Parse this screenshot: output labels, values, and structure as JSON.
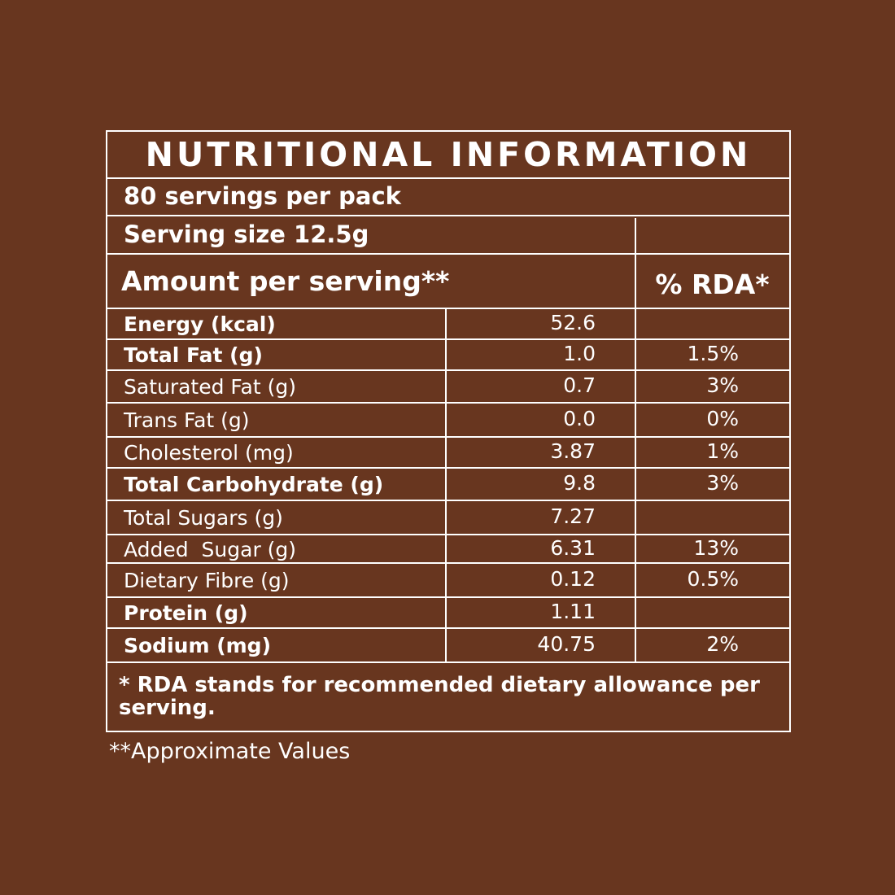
{
  "header": {
    "title": "NUTRITIONAL INFORMATION",
    "servings": "80 servings per pack",
    "serving_size": "Serving size 12.5g",
    "amount_label": "Amount per serving**",
    "rda_label": "% RDA*"
  },
  "table": {
    "rows": [
      {
        "nutrient": "Energy (kcal)",
        "amount": "52.6",
        "rda": null,
        "bold": true
      },
      {
        "nutrient": "Total Fat (g)",
        "amount": "1.0",
        "rda": "1.5%",
        "bold": true
      },
      {
        "nutrient": "Saturated Fat (g)",
        "amount": "0.7",
        "rda": "3%",
        "bold": false
      },
      {
        "nutrient": "Trans Fat (g)",
        "amount": "0.0",
        "rda": "0%",
        "bold": false
      },
      {
        "nutrient": "Cholesterol (mg)",
        "amount": "3.87",
        "rda": "1%",
        "bold": false
      },
      {
        "nutrient": "Total Carbohydrate (g)",
        "amount": "9.8",
        "rda": "3%",
        "bold": true
      },
      {
        "nutrient": "Total Sugars (g)",
        "amount": "7.27",
        "rda": null,
        "bold": false
      },
      {
        "nutrient": "Added  Sugar (g)",
        "amount": "6.31",
        "rda": "13%",
        "bold": false
      },
      {
        "nutrient": "Dietary Fibre (g)",
        "amount": "0.12",
        "rda": "0.5%",
        "bold": false
      },
      {
        "nutrient": "Protein (g)",
        "amount": "1.11",
        "rda": null,
        "bold": true
      },
      {
        "nutrient": "Sodium (mg)",
        "amount": "40.75",
        "rda": "2%",
        "bold": true
      }
    ]
  },
  "footer": {
    "rda_note": "* RDA stands for recommended dietary allowance per serving.",
    "approx_note": "**Approximate Values"
  }
}
